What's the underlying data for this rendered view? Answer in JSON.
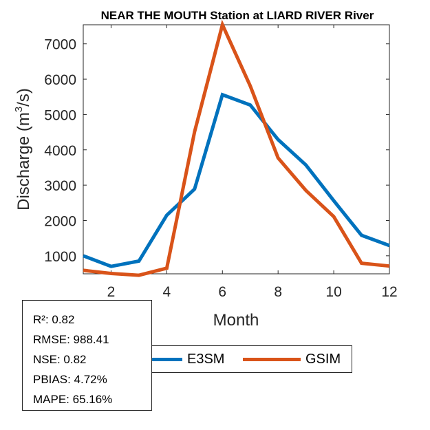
{
  "chart_data": {
    "type": "line",
    "title": "NEAR THE MOUTH  Station at  LIARD RIVER  River",
    "xlabel": "Month",
    "ylabel": "Discharge (m³/s)",
    "ylabel_parts": {
      "base": "Discharge (m",
      "sup": "3",
      "tail": "/s)"
    },
    "x": [
      1,
      2,
      3,
      4,
      5,
      6,
      7,
      8,
      9,
      10,
      11,
      12
    ],
    "xlim": [
      1,
      12
    ],
    "ylim": [
      490,
      7540
    ],
    "xticks": [
      2,
      4,
      6,
      8,
      10,
      12
    ],
    "xtick_labels": [
      "2",
      "4",
      "6",
      "8",
      "10",
      "12"
    ],
    "yticks": [
      1000,
      2000,
      3000,
      4000,
      5000,
      6000,
      7000
    ],
    "ytick_labels": [
      "1000",
      "2000",
      "3000",
      "4000",
      "5000",
      "6000",
      "7000"
    ],
    "grid": false,
    "series": [
      {
        "name": "E3SM",
        "color": "#0072BD",
        "values": [
          1000,
          700,
          850,
          2150,
          2890,
          5560,
          5270,
          4290,
          3570,
          2560,
          1580,
          1290
        ]
      },
      {
        "name": "GSIM",
        "color": "#D95319",
        "values": [
          590,
          500,
          450,
          650,
          4510,
          7540,
          5810,
          3770,
          2850,
          2110,
          790,
          710
        ]
      }
    ],
    "legend": {
      "placement": "bottom-outside",
      "entries": [
        "E3SM",
        "GSIM"
      ]
    },
    "annotation": {
      "lines": [
        "R²: 0.82",
        "RMSE: 988.41",
        "NSE: 0.82",
        "PBIAS: 4.72%",
        "MAPE: 65.16%"
      ]
    }
  }
}
